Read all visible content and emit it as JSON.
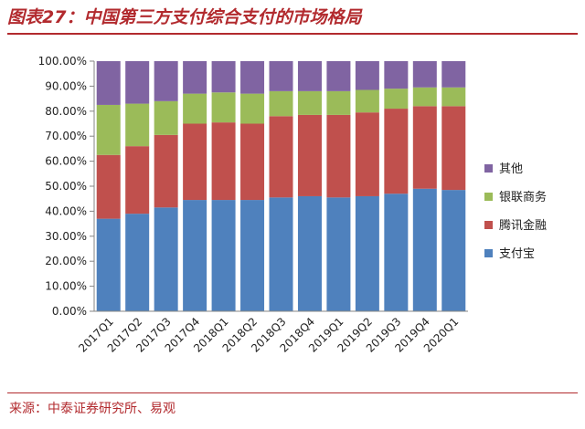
{
  "header": {
    "title": "图表27：中国第三方支付综合支付的市场格局"
  },
  "footer": {
    "source": "来源：中泰证券研究所、易观"
  },
  "colors": {
    "title_red": "#b22a2e",
    "alipay": "#4f81bd",
    "tenpay": "#c0504d",
    "unionpay": "#9bbb59",
    "other": "#8064a2"
  },
  "chart_data": {
    "type": "bar",
    "stacked": true,
    "categories": [
      "2017Q1",
      "2017Q2",
      "2017Q3",
      "2017Q4",
      "2018Q1",
      "2018Q2",
      "2018Q3",
      "2018Q4",
      "2019Q1",
      "2019Q2",
      "2019Q3",
      "2019Q4",
      "2020Q1"
    ],
    "series": [
      {
        "name": "支付宝",
        "color": "#4f81bd",
        "values": [
          37.0,
          39.0,
          41.5,
          44.5,
          44.5,
          44.5,
          45.5,
          46.0,
          45.5,
          46.0,
          47.0,
          49.0,
          48.5
        ]
      },
      {
        "name": "腾讯金融",
        "color": "#c0504d",
        "values": [
          25.5,
          27.0,
          29.0,
          30.5,
          31.0,
          30.5,
          32.5,
          32.5,
          33.0,
          33.5,
          34.0,
          33.0,
          33.5
        ]
      },
      {
        "name": "银联商务",
        "color": "#9bbb59",
        "values": [
          20.0,
          17.0,
          13.5,
          12.0,
          12.0,
          12.0,
          10.0,
          9.5,
          9.5,
          9.0,
          8.0,
          7.5,
          7.5
        ]
      },
      {
        "name": "其他",
        "color": "#8064a2",
        "values": [
          17.5,
          17.0,
          16.0,
          13.0,
          12.5,
          13.0,
          12.0,
          12.0,
          12.0,
          11.5,
          11.0,
          10.5,
          10.5
        ]
      }
    ],
    "ylim": [
      0,
      100
    ],
    "yticks": [
      "0.00%",
      "10.00%",
      "20.00%",
      "30.00%",
      "40.00%",
      "50.00%",
      "60.00%",
      "70.00%",
      "80.00%",
      "90.00%",
      "100.00%"
    ],
    "legend_order": [
      "其他",
      "银联商务",
      "腾讯金融",
      "支付宝"
    ],
    "legend_position": "right",
    "grid": false
  }
}
